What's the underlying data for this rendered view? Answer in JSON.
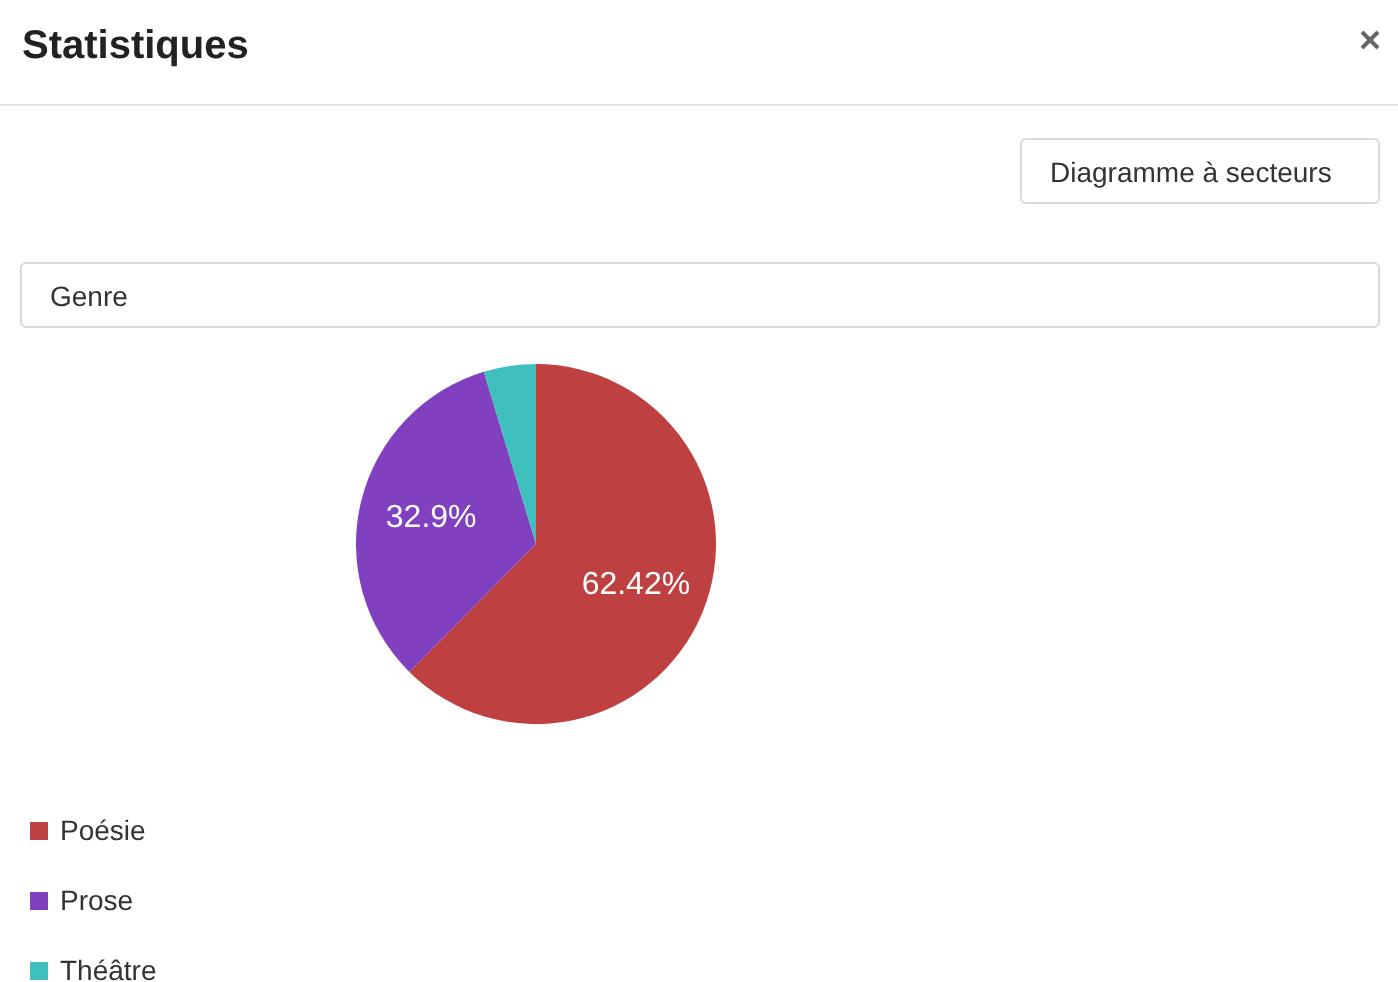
{
  "chart_data": {
    "type": "pie",
    "title": "Statistiques",
    "annotations": [
      "Diagramme à secteurs",
      "Genre"
    ],
    "categories": [
      "Poésie",
      "Prose",
      "Théâtre"
    ],
    "values": [
      62.42,
      32.9,
      4.68
    ],
    "colors": [
      "#bf4040",
      "#8040bf",
      "#40bfbf"
    ],
    "value_labels": [
      "62.42%",
      "32.9%",
      null
    ],
    "legend": "bottom left"
  }
}
